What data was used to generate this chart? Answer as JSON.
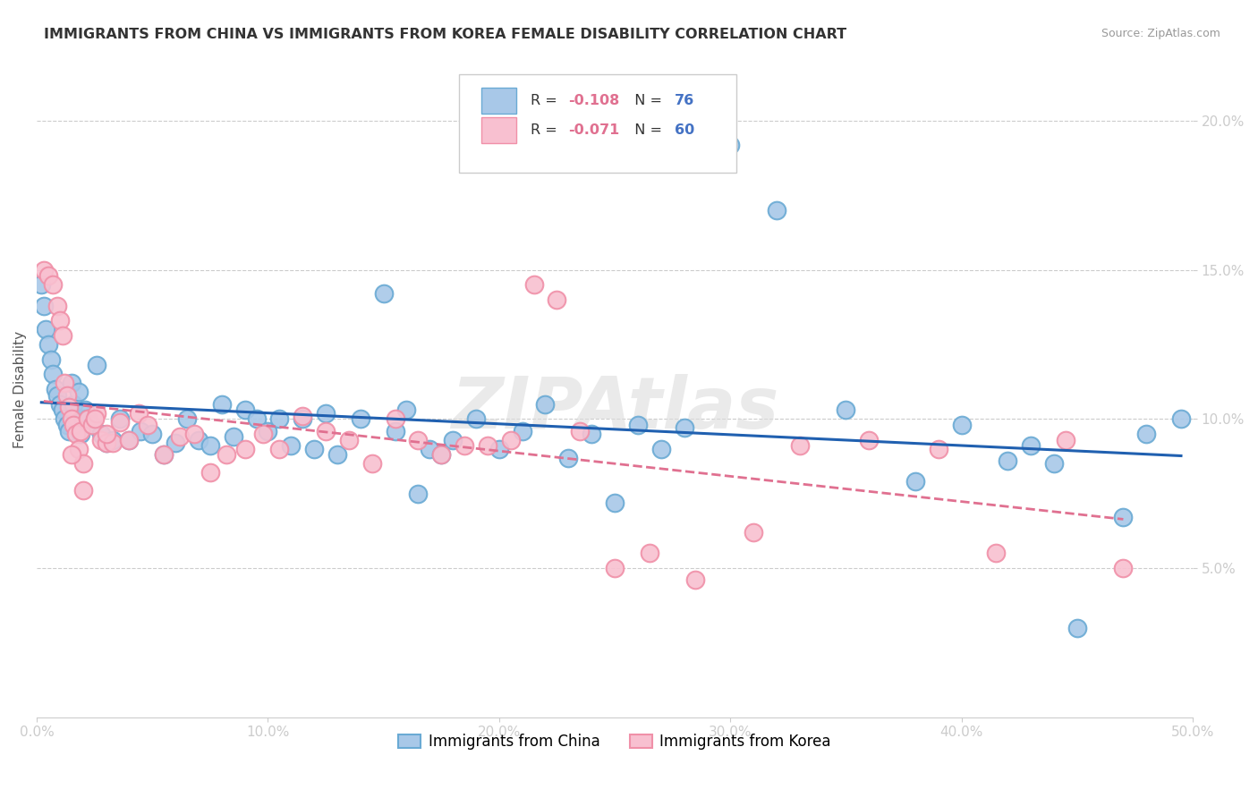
{
  "title": "IMMIGRANTS FROM CHINA VS IMMIGRANTS FROM KOREA FEMALE DISABILITY CORRELATION CHART",
  "source": "Source: ZipAtlas.com",
  "ylabel": "Female Disability",
  "xlim": [
    0.0,
    0.5
  ],
  "ylim": [
    0.0,
    0.22
  ],
  "yticks": [
    0.05,
    0.1,
    0.15,
    0.2
  ],
  "ytick_labels": [
    "5.0%",
    "10.0%",
    "15.0%",
    "20.0%"
  ],
  "xticks": [
    0.0,
    0.1,
    0.2,
    0.3,
    0.4,
    0.5
  ],
  "xtick_labels": [
    "0.0%",
    "10.0%",
    "20.0%",
    "30.0%",
    "40.0%",
    "50.0%"
  ],
  "china_face_color": "#a8c8e8",
  "china_edge_color": "#6aaad4",
  "korea_face_color": "#f8c0d0",
  "korea_edge_color": "#f090a8",
  "trendline_china_color": "#2060b0",
  "trendline_korea_color": "#e07090",
  "legend_R_color": "#333333",
  "legend_val_pink": "#e07090",
  "legend_val_blue": "#4472c4",
  "legend_R_china": "-0.108",
  "legend_N_china": "76",
  "legend_R_korea": "-0.071",
  "legend_N_korea": "60",
  "watermark": "ZIPAtlas",
  "bottom_label_china": "Immigrants from China",
  "bottom_label_korea": "Immigrants from Korea",
  "china_x": [
    0.002,
    0.003,
    0.004,
    0.005,
    0.006,
    0.007,
    0.008,
    0.009,
    0.01,
    0.011,
    0.012,
    0.013,
    0.014,
    0.015,
    0.016,
    0.017,
    0.018,
    0.019,
    0.02,
    0.021,
    0.022,
    0.024,
    0.026,
    0.028,
    0.03,
    0.033,
    0.036,
    0.04,
    0.045,
    0.05,
    0.055,
    0.06,
    0.065,
    0.07,
    0.075,
    0.08,
    0.085,
    0.09,
    0.095,
    0.1,
    0.105,
    0.11,
    0.115,
    0.12,
    0.125,
    0.13,
    0.14,
    0.15,
    0.155,
    0.16,
    0.165,
    0.17,
    0.175,
    0.18,
    0.19,
    0.2,
    0.21,
    0.22,
    0.23,
    0.24,
    0.25,
    0.26,
    0.27,
    0.28,
    0.3,
    0.32,
    0.35,
    0.38,
    0.4,
    0.42,
    0.43,
    0.44,
    0.45,
    0.47,
    0.48,
    0.495
  ],
  "china_y": [
    0.145,
    0.138,
    0.13,
    0.125,
    0.12,
    0.115,
    0.11,
    0.108,
    0.105,
    0.103,
    0.1,
    0.098,
    0.096,
    0.112,
    0.105,
    0.1,
    0.109,
    0.095,
    0.1,
    0.103,
    0.1,
    0.098,
    0.118,
    0.095,
    0.092,
    0.093,
    0.1,
    0.093,
    0.096,
    0.095,
    0.088,
    0.092,
    0.1,
    0.093,
    0.091,
    0.105,
    0.094,
    0.103,
    0.1,
    0.096,
    0.1,
    0.091,
    0.1,
    0.09,
    0.102,
    0.088,
    0.1,
    0.142,
    0.096,
    0.103,
    0.075,
    0.09,
    0.088,
    0.093,
    0.1,
    0.09,
    0.096,
    0.105,
    0.087,
    0.095,
    0.072,
    0.098,
    0.09,
    0.097,
    0.192,
    0.17,
    0.103,
    0.079,
    0.098,
    0.086,
    0.091,
    0.085,
    0.03,
    0.067,
    0.095,
    0.1
  ],
  "korea_x": [
    0.003,
    0.005,
    0.007,
    0.009,
    0.01,
    0.011,
    0.012,
    0.013,
    0.014,
    0.015,
    0.016,
    0.017,
    0.018,
    0.019,
    0.02,
    0.022,
    0.024,
    0.026,
    0.028,
    0.03,
    0.033,
    0.036,
    0.04,
    0.044,
    0.048,
    0.055,
    0.062,
    0.068,
    0.075,
    0.082,
    0.09,
    0.098,
    0.105,
    0.115,
    0.125,
    0.135,
    0.145,
    0.155,
    0.165,
    0.175,
    0.185,
    0.195,
    0.205,
    0.215,
    0.225,
    0.235,
    0.25,
    0.265,
    0.285,
    0.31,
    0.33,
    0.36,
    0.39,
    0.415,
    0.445,
    0.47,
    0.015,
    0.02,
    0.025,
    0.03
  ],
  "korea_y": [
    0.15,
    0.148,
    0.145,
    0.138,
    0.133,
    0.128,
    0.112,
    0.108,
    0.104,
    0.1,
    0.098,
    0.095,
    0.09,
    0.096,
    0.085,
    0.1,
    0.098,
    0.102,
    0.093,
    0.092,
    0.092,
    0.099,
    0.093,
    0.102,
    0.098,
    0.088,
    0.094,
    0.095,
    0.082,
    0.088,
    0.09,
    0.095,
    0.09,
    0.101,
    0.096,
    0.093,
    0.085,
    0.1,
    0.093,
    0.088,
    0.091,
    0.091,
    0.093,
    0.145,
    0.14,
    0.096,
    0.05,
    0.055,
    0.046,
    0.062,
    0.091,
    0.093,
    0.09,
    0.055,
    0.093,
    0.05,
    0.088,
    0.076,
    0.1,
    0.095
  ]
}
